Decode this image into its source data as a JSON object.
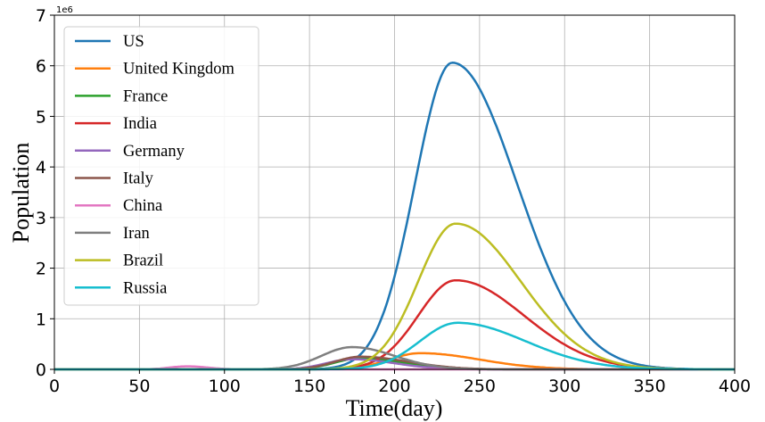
{
  "chart_data": {
    "type": "line",
    "xlabel": "Time(day)",
    "ylabel": "Population",
    "y_scale_label": "1e6",
    "xlim": [
      0,
      400
    ],
    "ylim": [
      0,
      7000000
    ],
    "x_ticks": [
      0,
      50,
      100,
      150,
      200,
      250,
      300,
      350,
      400
    ],
    "x_tick_labels": [
      "0",
      "50",
      "100",
      "150",
      "200",
      "250",
      "300",
      "350",
      "400"
    ],
    "y_ticks": [
      0,
      1000000,
      2000000,
      3000000,
      4000000,
      5000000,
      6000000,
      7000000
    ],
    "y_tick_labels": [
      "0",
      "1",
      "2",
      "3",
      "4",
      "5",
      "6",
      "7"
    ],
    "grid": true,
    "legend_position": "top-left",
    "series": [
      {
        "name": "US",
        "color": "#1f77b4",
        "peak_day": 234,
        "peak": 6060000,
        "rise_width": 22,
        "fall_width": 38
      },
      {
        "name": "United Kingdom",
        "color": "#ff7f0e",
        "peak_day": 215,
        "peak": 320000,
        "rise_width": 18,
        "fall_width": 35
      },
      {
        "name": "France",
        "color": "#2ca02c",
        "peak_day": 180,
        "peak": 220000,
        "rise_width": 15,
        "fall_width": 25
      },
      {
        "name": "India",
        "color": "#d62728",
        "peak_day": 236,
        "peak": 1760000,
        "rise_width": 22,
        "fall_width": 40
      },
      {
        "name": "Germany",
        "color": "#9467bd",
        "peak_day": 175,
        "peak": 200000,
        "rise_width": 15,
        "fall_width": 25
      },
      {
        "name": "Italy",
        "color": "#8c564b",
        "peak_day": 180,
        "peak": 250000,
        "rise_width": 15,
        "fall_width": 28
      },
      {
        "name": "China",
        "color": "#e377c2",
        "peak_day": 78,
        "peak": 60000,
        "rise_width": 10,
        "fall_width": 12
      },
      {
        "name": "Iran",
        "color": "#7f7f7f",
        "peak_day": 175,
        "peak": 440000,
        "rise_width": 18,
        "fall_width": 25
      },
      {
        "name": "Brazil",
        "color": "#bcbd22",
        "peak_day": 236,
        "peak": 2880000,
        "rise_width": 22,
        "fall_width": 38
      },
      {
        "name": "Russia",
        "color": "#17becf",
        "peak_day": 237,
        "peak": 920000,
        "rise_width": 22,
        "fall_width": 40
      }
    ]
  }
}
